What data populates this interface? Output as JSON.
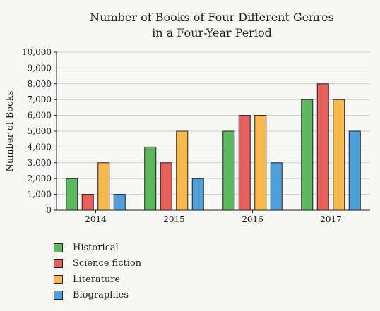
{
  "chart_data": {
    "type": "bar",
    "title": [
      "Number of Books of Four Different Genres",
      "in a Four-Year Period"
    ],
    "ylabel": "Number of Books",
    "xlabel": "",
    "categories": [
      "2014",
      "2015",
      "2016",
      "2017"
    ],
    "ylim": [
      0,
      10000
    ],
    "yticks": [
      "0",
      "1,000",
      "2,000",
      "3,000",
      "4,000",
      "5,000",
      "6,000",
      "7,000",
      "8,000",
      "9,000",
      "10,000"
    ],
    "grid": true,
    "legend_position": "bottom-left",
    "series": [
      {
        "name": "Historical",
        "color": "#5cb85c",
        "values": [
          2000,
          4000,
          5000,
          7000
        ]
      },
      {
        "name": "Science fiction",
        "color": "#e8605a",
        "values": [
          1000,
          3000,
          6000,
          8000
        ]
      },
      {
        "name": "Literature",
        "color": "#f6b94a",
        "values": [
          3000,
          5000,
          6000,
          7000
        ]
      },
      {
        "name": "Biographies",
        "color": "#4f9fdc",
        "values": [
          1000,
          2000,
          3000,
          5000
        ]
      }
    ]
  }
}
